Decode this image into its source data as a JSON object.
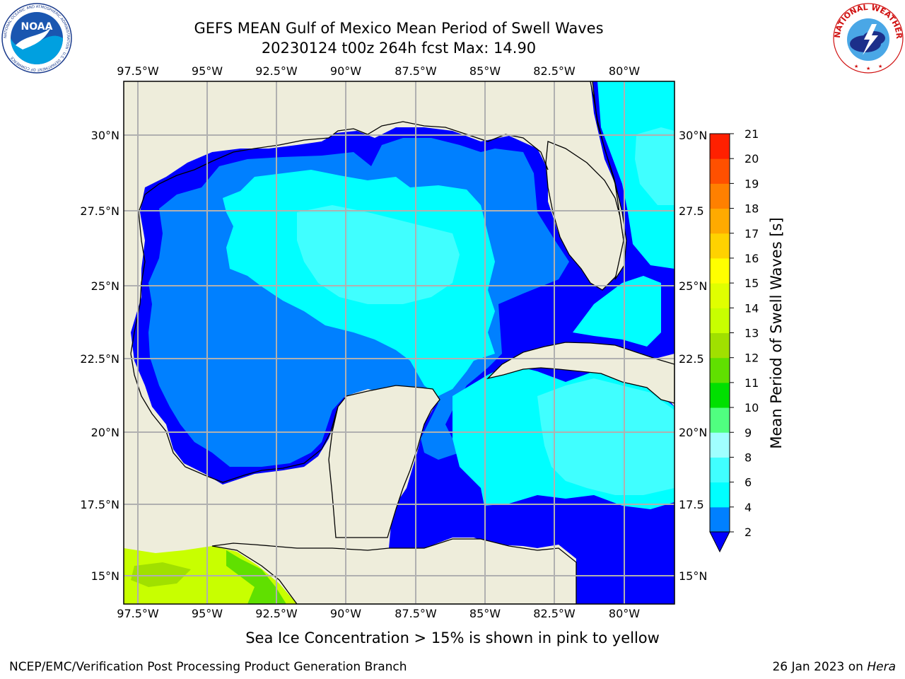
{
  "title": {
    "line1": "GEFS MEAN Gulf of Mexico Mean Period of Swell Waves",
    "line2": "20230124 t00z 264h fcst   Max: 14.90"
  },
  "map": {
    "lon_ticks": [
      "97.5°W",
      "95°W",
      "92.5°W",
      "90°W",
      "87.5°W",
      "85°W",
      "82.5°W",
      "80°W"
    ],
    "lat_ticks": [
      "30°N",
      "27.5°N",
      "25°N",
      "22.5°N",
      "20°N",
      "17.5°N",
      "15°N"
    ],
    "right_lat_ticks": [
      "30°N",
      "27.5",
      "25°N",
      "22.5",
      "20°N",
      "17.5",
      "15°N"
    ],
    "land_color": "#eeeddb",
    "gridline_color": "#b0b0b0"
  },
  "colorbar": {
    "label": "Mean Period of Swell Waves [s]",
    "ticks": [
      "2",
      "4",
      "6",
      "8",
      "9",
      "10",
      "11",
      "12",
      "13",
      "14",
      "15",
      "16",
      "17",
      "18",
      "19",
      "20",
      "21"
    ],
    "colors": [
      "#0000ff",
      "#0080ff",
      "#00ffff",
      "#40ffff",
      "#a0ffff",
      "#50ff80",
      "#00e000",
      "#60e000",
      "#a0e000",
      "#c8ff00",
      "#e0ff00",
      "#ffff00",
      "#ffd200",
      "#ffaa00",
      "#ff8000",
      "#ff5000",
      "#ff2000",
      "#ff0000"
    ]
  },
  "subtitle": "Sea Ice Concentration > 15% is shown in pink to yellow",
  "footer": {
    "left": "NCEP/EMC/Verification Post Processing Product Generation Branch",
    "right_date": "26 Jan 2023 on ",
    "right_host": "Hera"
  },
  "logos": {
    "noaa_text": "NOAA",
    "noaa_ring": "NATIONAL OCEANIC AND ATMOSPHERIC ADMINISTRATION · U.S. DEPARTMENT OF COMMERCE",
    "nws_ring": "NATIONAL WEATHER SERVICE"
  }
}
